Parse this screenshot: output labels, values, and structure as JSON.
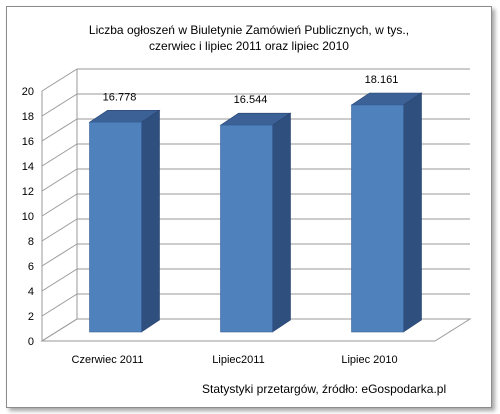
{
  "chart_data": {
    "type": "bar",
    "title_line1": "Liczba ogłoszeń w Biuletynie Zamówień Publicznych, w tys.,",
    "title_line2": "czerwiec i lipiec 2011  oraz lipiec 2010",
    "categories": [
      "Czerwiec 2011",
      "Lipiec2011",
      "Lipiec 2010"
    ],
    "values": [
      16.778,
      16.544,
      18.161
    ],
    "value_labels": [
      "16.778",
      "16.544",
      "18.161"
    ],
    "ylim": [
      0,
      20
    ],
    "yticks": [
      0,
      2,
      4,
      6,
      8,
      10,
      12,
      14,
      16,
      18,
      20
    ],
    "grid": true,
    "bar_color": "#4f81bd",
    "bar_side_color": "#2f4f7f",
    "bar_top_color": "#3b6196"
  },
  "source_text": "Statystyki przetargów, źródło: eGospodarka.pl"
}
